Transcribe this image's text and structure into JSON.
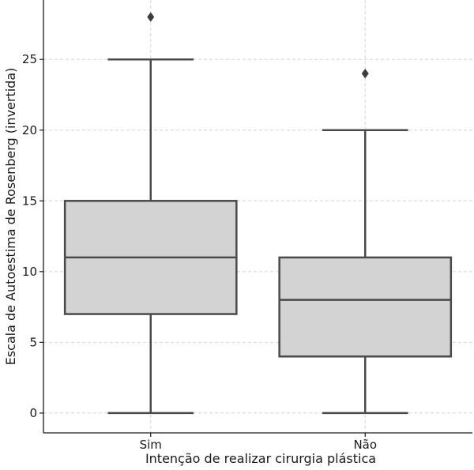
{
  "chart_data": {
    "type": "boxplot",
    "xlabel": "Intenção de realizar cirurgia plástica",
    "ylabel": "Escala de Autoestima de Rosenberg (invertida)",
    "ylim": [
      -1.4,
      29.2
    ],
    "yticks": [
      0,
      5,
      10,
      15,
      20,
      25
    ],
    "grid": true,
    "categories": [
      "Sim",
      "Não"
    ],
    "boxes": [
      {
        "category": "Sim",
        "whisker_low": 0,
        "q1": 7,
        "median": 11,
        "q3": 15,
        "whisker_high": 25,
        "outliers": [
          28
        ]
      },
      {
        "category": "Não",
        "whisker_low": 0,
        "q1": 4,
        "median": 8,
        "q3": 11,
        "whisker_high": 20,
        "outliers": [
          24
        ]
      }
    ],
    "colors": {
      "box_fill": "#d3d3d3",
      "box_edge": "#4a4a4a",
      "grid": "#d4d4d4"
    }
  }
}
